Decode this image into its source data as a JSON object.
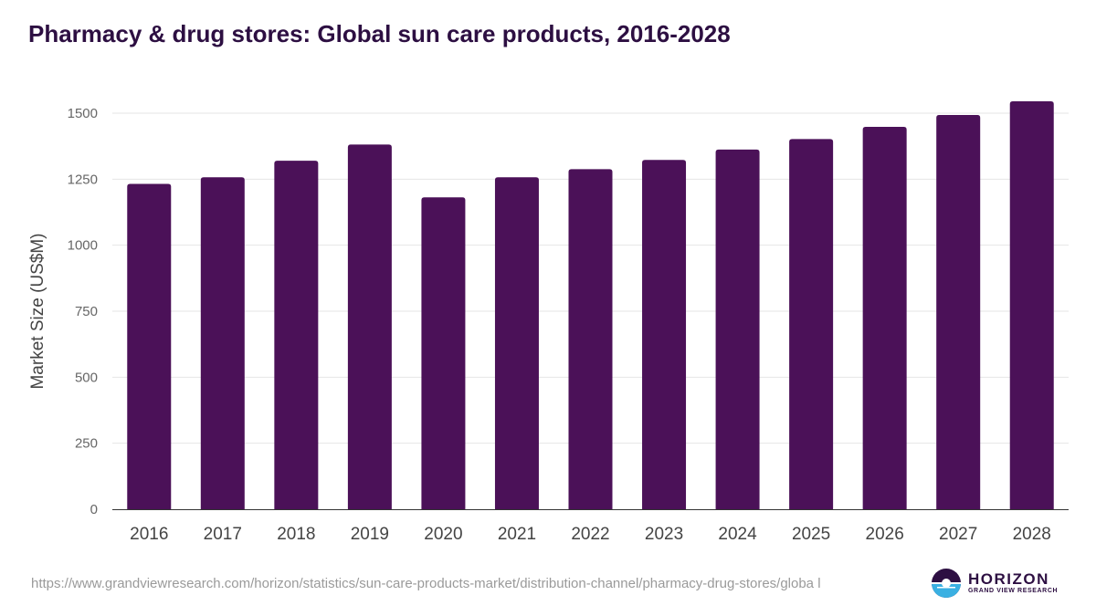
{
  "title": "Pharmacy & drug stores: Global sun care products, 2016-2028",
  "source_url": "https://www.grandviewresearch.com/horizon/statistics/sun-care-products-market/distribution-channel/pharmacy-drug-stores/globa l",
  "logo": {
    "name": "HORIZON",
    "tagline": "GRAND VIEW RESEARCH"
  },
  "colors": {
    "bar": "#4b1158",
    "title": "#2d0f42",
    "grid": "#e6e6e6"
  },
  "chart_data": {
    "type": "bar",
    "title": "Pharmacy & drug stores: Global sun care products, 2016-2028",
    "xlabel": "",
    "ylabel": "Market Size (US$M)",
    "categories": [
      "2016",
      "2017",
      "2018",
      "2019",
      "2020",
      "2021",
      "2022",
      "2023",
      "2024",
      "2025",
      "2026",
      "2027",
      "2028"
    ],
    "values": [
      1232,
      1257,
      1320,
      1381,
      1181,
      1257,
      1288,
      1323,
      1362,
      1402,
      1448,
      1493,
      1545
    ],
    "ylim": [
      0,
      1500
    ],
    "yticks": [
      0,
      250,
      500,
      750,
      1000,
      1250,
      1500
    ],
    "grid": true,
    "legend": "none"
  }
}
